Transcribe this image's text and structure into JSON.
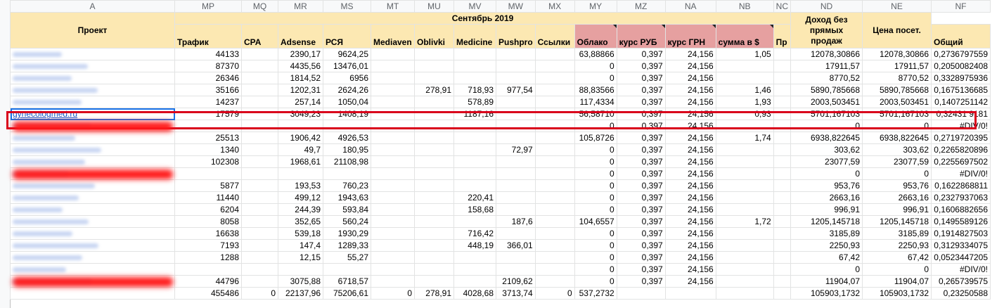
{
  "columns": [
    "A",
    "MP",
    "MQ",
    "MR",
    "MS",
    "MT",
    "MU",
    "MV",
    "MW",
    "MX",
    "MY",
    "MZ",
    "NA",
    "NB",
    "NC",
    "ND",
    "NE",
    "NF"
  ],
  "header": {
    "project": "Проект",
    "month": "Сентябрь 2019",
    "income_no_direct": "Доход без прямых продаж",
    "price_per_visit": "Цена посет.",
    "fields": [
      "Трафик",
      "CPA",
      "Adsense",
      "РСЯ",
      "Mediaven",
      "Oblivki",
      "Medicine",
      "Pushpro",
      "Ссылки",
      "Облако",
      "курс РУБ",
      "курс ГРН",
      "сумма в $",
      "Пр",
      "Общий"
    ]
  },
  "selected_project": "gynecologmed.ru",
  "rows": [
    [
      "44133",
      "",
      "2390,17",
      "9624,25",
      "",
      "",
      "",
      "",
      "",
      "63,88866",
      "0,397",
      "24,156",
      "1,05",
      "",
      "12078,30866",
      "12078,30866",
      "0,2736797559"
    ],
    [
      "87370",
      "",
      "4435,56",
      "13476,01",
      "",
      "",
      "",
      "",
      "",
      "0",
      "0,397",
      "24,156",
      "",
      "",
      "17911,57",
      "17911,57",
      "0,2050082408"
    ],
    [
      "26346",
      "",
      "1814,52",
      "6956",
      "",
      "",
      "",
      "",
      "",
      "0",
      "0,397",
      "24,156",
      "",
      "",
      "8770,52",
      "8770,52",
      "0,3328975936"
    ],
    [
      "35166",
      "",
      "1202,31",
      "2624,26",
      "",
      "278,91",
      "718,93",
      "977,54",
      "",
      "88,83566",
      "0,397",
      "24,156",
      "1,46",
      "",
      "5890,785668",
      "5890,785668",
      "0,1675136685"
    ],
    [
      "14237",
      "",
      "257,14",
      "1050,04",
      "",
      "",
      "578,89",
      "",
      "",
      "117,4334",
      "0,397",
      "24,156",
      "1,93",
      "",
      "2003,503451",
      "2003,503451",
      "0,1407251142"
    ],
    [
      "17579",
      "",
      "3049,23",
      "1408,19",
      "",
      "",
      "1187,16",
      "",
      "",
      "56,58710",
      "0,397",
      "24,156",
      "0,93",
      "",
      "5701,167103",
      "5701,167103",
      "0,32431 9181"
    ],
    [
      "",
      "",
      "",
      "",
      "",
      "",
      "",
      "",
      "",
      "0",
      "0,397",
      "24,156",
      "",
      "",
      "0",
      "0",
      "#DIV/0!"
    ],
    [
      "25513",
      "",
      "1906,42",
      "4926,53",
      "",
      "",
      "",
      "",
      "",
      "105,8726",
      "0,397",
      "24,156",
      "1,74",
      "",
      "6938,822645",
      "6938,822645",
      "0,2719720395"
    ],
    [
      "1340",
      "",
      "49,7",
      "180,95",
      "",
      "",
      "",
      "72,97",
      "",
      "0",
      "0,397",
      "24,156",
      "",
      "",
      "303,62",
      "303,62",
      "0,2265820896"
    ],
    [
      "102308",
      "",
      "1968,61",
      "21108,98",
      "",
      "",
      "",
      "",
      "",
      "0",
      "0,397",
      "24,156",
      "",
      "",
      "23077,59",
      "23077,59",
      "0,2255697502"
    ],
    [
      "",
      "",
      "",
      "",
      "",
      "",
      "",
      "",
      "",
      "0",
      "0,397",
      "24,156",
      "",
      "",
      "0",
      "0",
      "#DIV/0!"
    ],
    [
      "5877",
      "",
      "193,53",
      "760,23",
      "",
      "",
      "",
      "",
      "",
      "0",
      "0,397",
      "24,156",
      "",
      "",
      "953,76",
      "953,76",
      "0,1622868811"
    ],
    [
      "11440",
      "",
      "499,12",
      "1943,63",
      "",
      "",
      "220,41",
      "",
      "",
      "0",
      "0,397",
      "24,156",
      "",
      "",
      "2663,16",
      "2663,16",
      "0,2327937063"
    ],
    [
      "6204",
      "",
      "244,39",
      "593,84",
      "",
      "",
      "158,68",
      "",
      "",
      "0",
      "0,397",
      "24,156",
      "",
      "",
      "996,91",
      "996,91",
      "0,1606882656"
    ],
    [
      "8058",
      "",
      "352,65",
      "560,24",
      "",
      "",
      "",
      "187,6",
      "",
      "104,6557",
      "0,397",
      "24,156",
      "1,72",
      "",
      "1205,145718",
      "1205,145718",
      "0,1495589126"
    ],
    [
      "16638",
      "",
      "539,18",
      "1930,29",
      "",
      "",
      "716,42",
      "",
      "",
      "0",
      "0,397",
      "24,156",
      "",
      "",
      "3185,89",
      "3185,89",
      "0,1914827503"
    ],
    [
      "7193",
      "",
      "147,4",
      "1289,33",
      "",
      "",
      "448,19",
      "366,01",
      "",
      "0",
      "0,397",
      "24,156",
      "",
      "",
      "2250,93",
      "2250,93",
      "0,3129334075"
    ],
    [
      "1288",
      "",
      "12,15",
      "55,27",
      "",
      "",
      "",
      "",
      "",
      "0",
      "0,397",
      "24,156",
      "",
      "",
      "67,42",
      "67,42",
      "0,0523447205"
    ],
    [
      "",
      "",
      "",
      "",
      "",
      "",
      "",
      "",
      "",
      "0",
      "0,397",
      "24,156",
      "",
      "",
      "0",
      "0",
      "#DIV/0!"
    ],
    [
      "44796",
      "",
      "3075,88",
      "6718,57",
      "",
      "",
      "",
      "2109,62",
      "",
      "0",
      "0,397",
      "24,156",
      "",
      "",
      "11904,07",
      "11904,07",
      "0,265739575"
    ],
    [
      "455486",
      "0",
      "22137,96",
      "75206,61",
      "0",
      "278,91",
      "4028,68",
      "3713,74",
      "0",
      "537,2732",
      "",
      "",
      "",
      "",
      "105903,1732",
      "105903,1732",
      "0,23250588"
    ]
  ]
}
